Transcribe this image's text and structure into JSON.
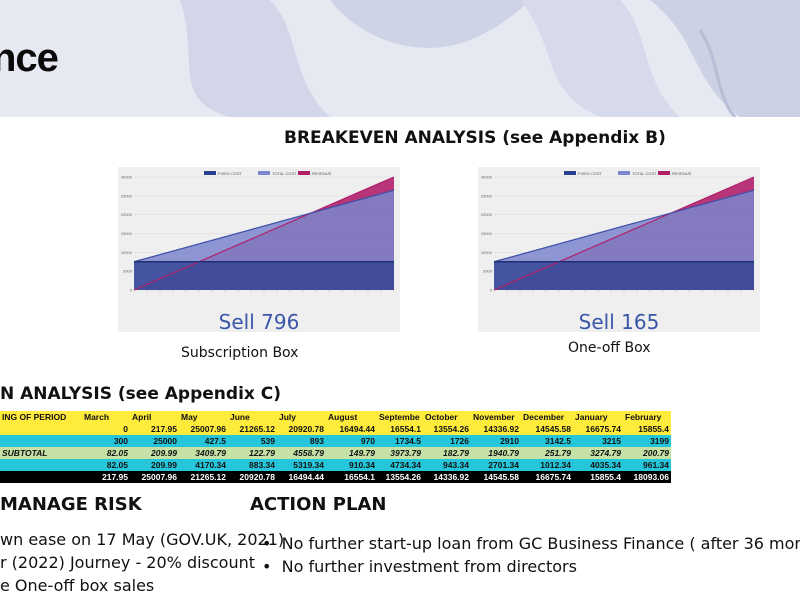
{
  "slide": {
    "title_fragment": "nce"
  },
  "breakeven": {
    "title": "BREAKEVEN ANALYSIS (see Appendix B)",
    "legend": [
      "FIXED COST",
      "TOTAL COST",
      "REVENUE"
    ],
    "charts": [
      {
        "sell_text": "Sell 796",
        "caption": "Subscription Box"
      },
      {
        "sell_text": "Sell 165",
        "caption": "One-off Box"
      }
    ]
  },
  "chart_data": [
    {
      "type": "area",
      "series": [
        {
          "name": "FIXED COST",
          "values": [
            7500,
            7500
          ]
        },
        {
          "name": "TOTAL COST",
          "values": [
            7500,
            26500
          ]
        },
        {
          "name": "REVENUE",
          "values": [
            0,
            30000
          ]
        }
      ],
      "x": [
        "0",
        "end"
      ],
      "ylim": [
        0,
        30000
      ],
      "yticks": [
        "0",
        "5000",
        "10000",
        "15000",
        "20000",
        "25000",
        "30000"
      ],
      "grid": true,
      "legend_position": "top"
    },
    {
      "type": "area",
      "series": [
        {
          "name": "FIXED COST",
          "values": [
            7500,
            7500
          ]
        },
        {
          "name": "TOTAL COST",
          "values": [
            7500,
            26500
          ]
        },
        {
          "name": "REVENUE",
          "values": [
            0,
            30000
          ]
        }
      ],
      "x": [
        "0",
        "end"
      ],
      "ylim": [
        0,
        30000
      ],
      "yticks": [
        "0",
        "5000",
        "10000",
        "15000",
        "20000",
        "25000",
        "30000"
      ],
      "grid": true,
      "legend_position": "top"
    }
  ],
  "cashflow": {
    "title_fragment": "N ANALYSIS (see Appendix C)",
    "header": [
      "ING OF PERIOD",
      "March",
      "April",
      "May",
      "June",
      "July",
      "August",
      "Septembe",
      "October",
      "November",
      "December",
      "January",
      "February"
    ],
    "rows": [
      [
        "",
        "0",
        "217.95",
        "25007.96",
        "21265.12",
        "20920.78",
        "16494.44",
        "16554.1",
        "13554.26",
        "14336.92",
        "14545.58",
        "16675.74",
        "15855.4"
      ],
      [
        "",
        "300",
        "25000",
        "427.5",
        "539",
        "893",
        "970",
        "1734.5",
        "1726",
        "2910",
        "3142.5",
        "3215",
        "3199"
      ],
      [
        "SUBTOTAL",
        "82.05",
        "209.99",
        "3409.79",
        "122.79",
        "4558.79",
        "149.79",
        "3973.79",
        "182.79",
        "1940.79",
        "251.79",
        "3274.79",
        "200.79"
      ],
      [
        "",
        "82.05",
        "209.99",
        "4170.34",
        "883.34",
        "5319.34",
        "910.34",
        "4734.34",
        "943.34",
        "2701.34",
        "1012.34",
        "4035.34",
        "961.34"
      ],
      [
        "",
        "217.95",
        "25007.96",
        "21265.12",
        "20920.78",
        "16494.44",
        "16554.1",
        "13554.26",
        "14336.92",
        "14545.58",
        "16675.74",
        "15855.4",
        "18093.06"
      ]
    ]
  },
  "risk": {
    "title_fragment": "MANAGE RISK",
    "items": [
      "wn ease on 17 May (GOV.UK, 2021)",
      "r (2022) Journey - 20% discount",
      "e One-off box sales"
    ]
  },
  "action_plan": {
    "title": "ACTION PLAN",
    "items": [
      "No further start-up loan from GC Business Finance  ( after 36 mor",
      "No further investment from directors"
    ]
  },
  "colors": {
    "fixed": "#2c3e8f",
    "total": "#7b86cc",
    "revenue": "#b0206a",
    "sell": "#3a56a8",
    "accent_yellow": "#ffeb3b",
    "accent_teal": "#26c6da"
  }
}
